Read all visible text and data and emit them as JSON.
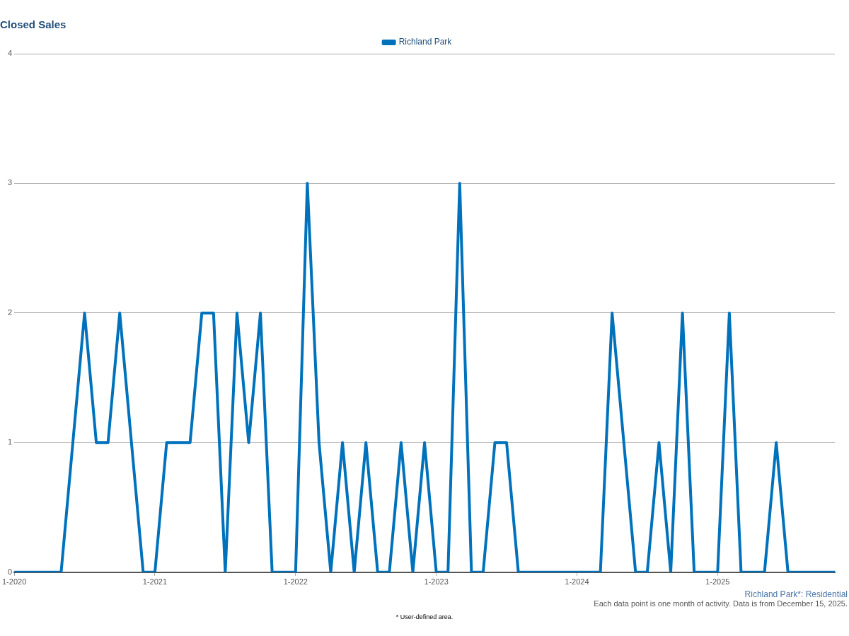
{
  "chart_data": {
    "type": "line",
    "title": "Closed Sales",
    "x": [
      "2020-01",
      "2020-02",
      "2020-03",
      "2020-04",
      "2020-05",
      "2020-06",
      "2020-07",
      "2020-08",
      "2020-09",
      "2020-10",
      "2020-11",
      "2020-12",
      "2021-01",
      "2021-02",
      "2021-03",
      "2021-04",
      "2021-05",
      "2021-06",
      "2021-07",
      "2021-08",
      "2021-09",
      "2021-10",
      "2021-11",
      "2021-12",
      "2022-01",
      "2022-02",
      "2022-03",
      "2022-04",
      "2022-05",
      "2022-06",
      "2022-07",
      "2022-08",
      "2022-09",
      "2022-10",
      "2022-11",
      "2022-12",
      "2023-01",
      "2023-02",
      "2023-03",
      "2023-04",
      "2023-05",
      "2023-06",
      "2023-07",
      "2023-08",
      "2023-09",
      "2023-10",
      "2023-11",
      "2023-12",
      "2024-01",
      "2024-02",
      "2024-03",
      "2024-04",
      "2024-05",
      "2024-06",
      "2024-07",
      "2024-08",
      "2024-09",
      "2024-10",
      "2024-11",
      "2024-12",
      "2025-01",
      "2025-02",
      "2025-03",
      "2025-04",
      "2025-05",
      "2025-06",
      "2025-07",
      "2025-08",
      "2025-09",
      "2025-10",
      "2025-11"
    ],
    "series": [
      {
        "name": "Richland Park",
        "color": "#0072bc",
        "values": [
          0,
          0,
          0,
          0,
          0,
          1,
          2,
          1,
          1,
          2,
          1,
          0,
          0,
          1,
          1,
          1,
          2,
          2,
          0,
          2,
          1,
          2,
          0,
          0,
          0,
          3,
          1,
          0,
          1,
          0,
          1,
          0,
          0,
          1,
          0,
          1,
          0,
          0,
          3,
          0,
          0,
          1,
          1,
          0,
          0,
          0,
          0,
          0,
          0,
          0,
          0,
          2,
          1,
          0,
          0,
          1,
          0,
          2,
          0,
          0,
          0,
          2,
          0,
          0,
          0,
          1,
          0,
          0,
          0,
          0,
          0
        ]
      }
    ],
    "xlim": [
      "2020-01",
      "2025-11"
    ],
    "xticks": [
      {
        "value": "2020-01",
        "label": "1-2020"
      },
      {
        "value": "2021-01",
        "label": "1-2021"
      },
      {
        "value": "2022-01",
        "label": "1-2022"
      },
      {
        "value": "2023-01",
        "label": "1-2023"
      },
      {
        "value": "2024-01",
        "label": "1-2024"
      },
      {
        "value": "2025-01",
        "label": "1-2025"
      }
    ],
    "ylim": [
      0,
      4
    ],
    "yticks": [
      0,
      1,
      2,
      3,
      4
    ],
    "grid": "y",
    "legend": "top",
    "marker": "none",
    "line_style": "solid",
    "annotations": [
      "Richland Park*: Residential",
      "Each data point is one month of activity. Data is from December 15, 2025.",
      "* User-defined area."
    ]
  }
}
